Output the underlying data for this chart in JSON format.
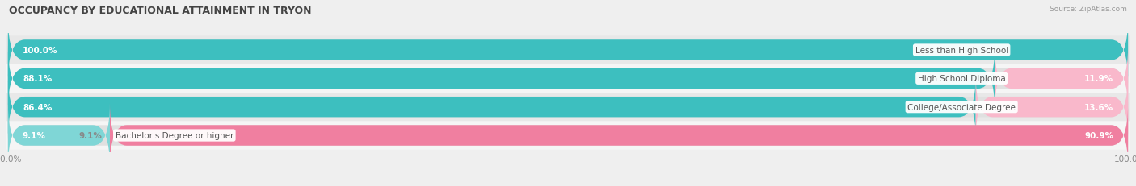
{
  "title": "OCCUPANCY BY EDUCATIONAL ATTAINMENT IN TRYON",
  "source": "Source: ZipAtlas.com",
  "categories": [
    "Less than High School",
    "High School Diploma",
    "College/Associate Degree",
    "Bachelor's Degree or higher"
  ],
  "owner_pct": [
    100.0,
    88.1,
    86.4,
    9.1
  ],
  "renter_pct": [
    0.0,
    11.9,
    13.6,
    90.9
  ],
  "owner_color": "#3dbfbf",
  "owner_color_light": "#7fd6d6",
  "renter_color": "#f07fa0",
  "renter_color_light": "#f9b8cb",
  "bg_color": "#efefef",
  "bar_bg_color": "#e0e0e0",
  "row_bg_even": "#e8e8e8",
  "row_bg_odd": "#f5f5f5",
  "title_fontsize": 9,
  "label_fontsize": 7.5,
  "pct_fontsize": 7.5,
  "tick_fontsize": 7.5,
  "legend_fontsize": 8
}
